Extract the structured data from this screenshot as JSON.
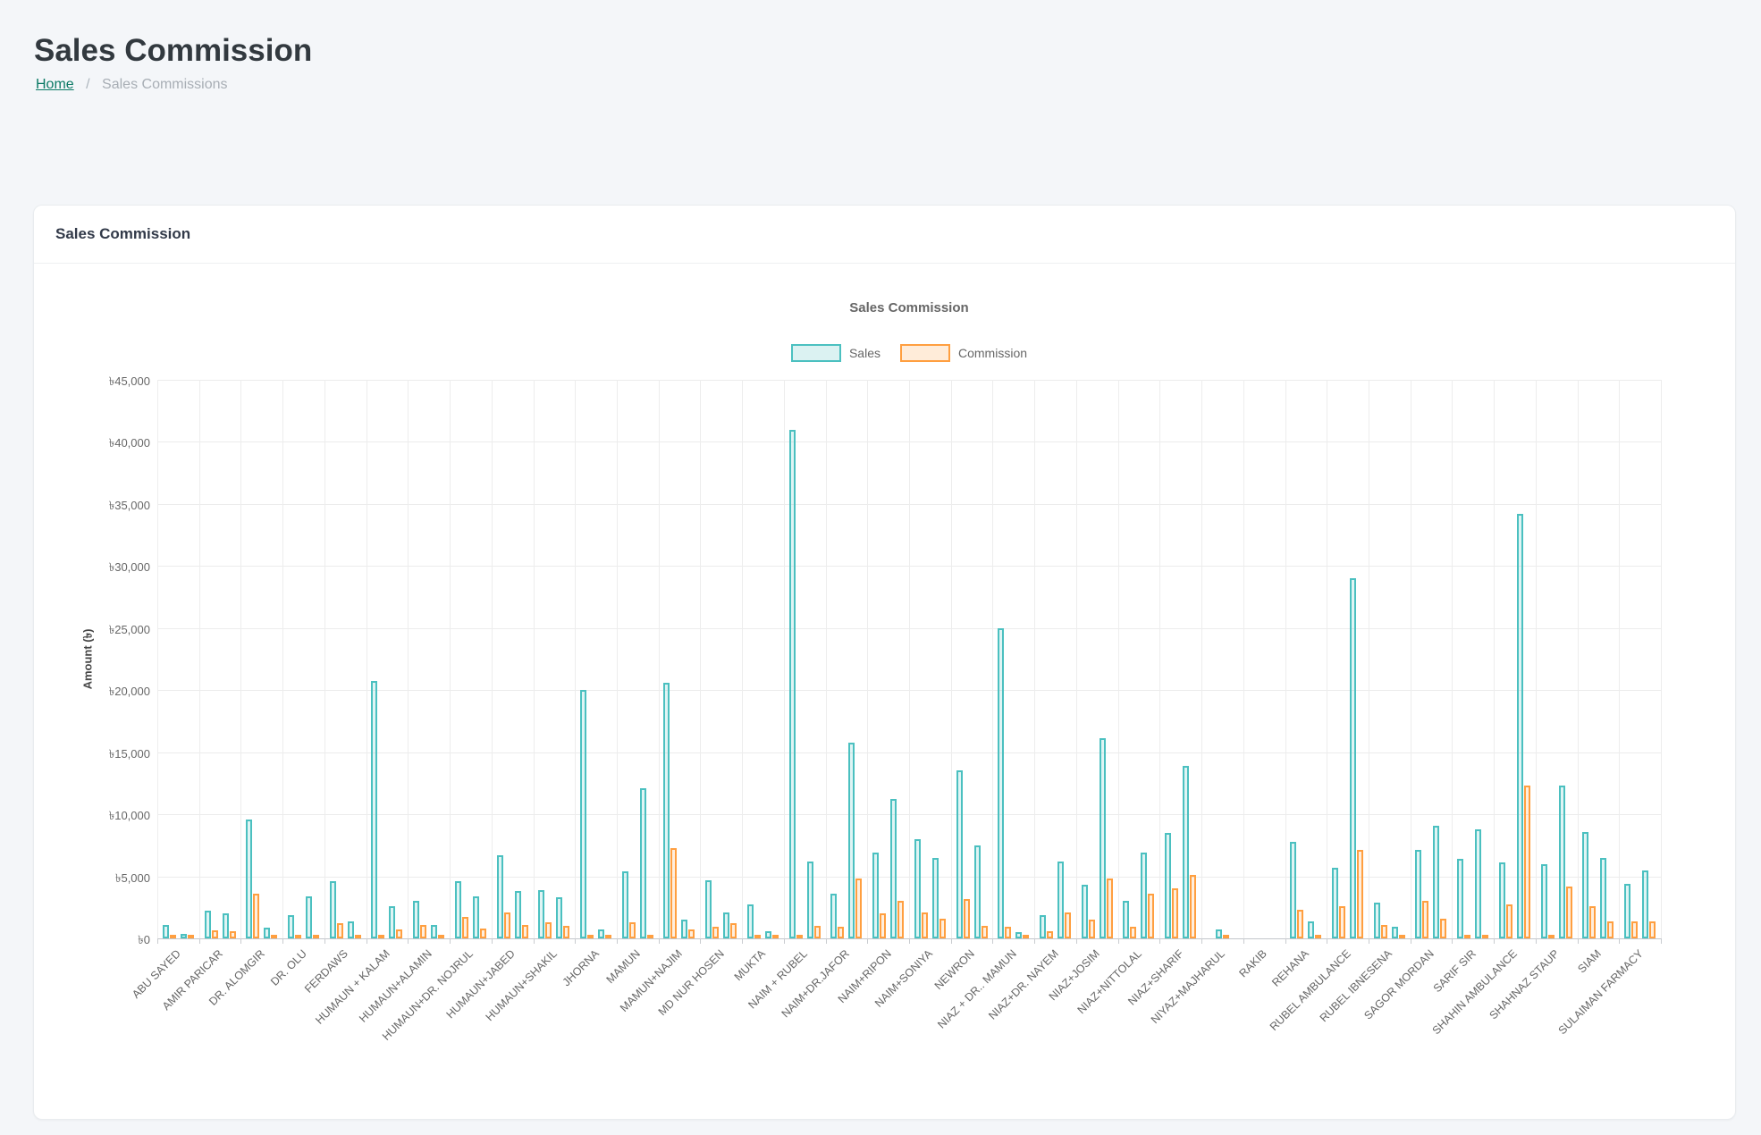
{
  "page": {
    "title": "Sales Commission",
    "breadcrumb": {
      "home": "Home",
      "separator": "/",
      "current": "Sales Commissions"
    }
  },
  "card": {
    "title": "Sales Commission"
  },
  "chart_data": {
    "type": "bar",
    "title": "Sales Commission",
    "ylabel": "Amount (৳)",
    "ylim": [
      0,
      45000
    ],
    "ytick_step": 5000,
    "yticks": [
      "৳0",
      "৳5,000",
      "৳10,000",
      "৳15,000",
      "৳20,000",
      "৳25,000",
      "৳30,000",
      "৳35,000",
      "৳40,000",
      "৳45,000"
    ],
    "legend_position": "top",
    "grid": true,
    "x_label_rotation": -45,
    "pairs_per_category": 2,
    "categories": [
      "ABU SAYED",
      "AMIR PARICAR",
      "DR. ALOMGIR",
      "DR. OLU",
      "FERDAWS",
      "HUMAUN + KALAM",
      "HUMAUN+ALAMIN",
      "HUMAUN+DR. NOJRUL",
      "HUMAUN+JABED",
      "HUMAUN+SHAKIL",
      "JHORNA",
      "MAMUN",
      "MAMUN+NAJIM",
      "MD NUR HOSEN",
      "MUKTA",
      "NAIM + RUBEL",
      "NAIM+DR.JAFOR",
      "NAIM+RIPON",
      "NAIM+SONIYA",
      "NEWRON",
      "NIAZ + DR.. MAMUN",
      "NIAZ+DR. NAYEM",
      "NIAZ+JOSIM",
      "NIAZ+NITTOLAL",
      "NIAZ+SHARIF",
      "NIYAZ+MAJHARUL",
      "RAKIB",
      "REHANA",
      "RUBEL AMBULANCE",
      "RUBEL IBNESENA",
      "SAGOR MORDAN",
      "SARIF SIR",
      "SHAHIN AMBULANCE",
      "SHAHNAZ STAUP",
      "SIAM",
      "SULAIMAN FARMACY"
    ],
    "series": [
      {
        "name": "Sales",
        "color": "#4bc0c0",
        "fill": "rgba(75,192,192,0.2)",
        "values": [
          1100,
          350,
          2250,
          2000,
          9600,
          850,
          1850,
          3350,
          4600,
          1400,
          20700,
          2600,
          3000,
          1100,
          4600,
          3400,
          6700,
          3800,
          3900,
          3300,
          20000,
          700,
          5400,
          12100,
          20600,
          1500,
          4700,
          2100,
          2700,
          600,
          41000,
          6200,
          3600,
          15800,
          6900,
          11200,
          8000,
          6500,
          13500,
          7500,
          25000,
          500,
          1900,
          6200,
          4300,
          16100,
          3000,
          6900,
          8500,
          13900,
          700,
          0,
          0,
          0,
          7800,
          1400,
          5700,
          29000,
          2900,
          950,
          7100,
          9050,
          6400,
          8800,
          6100,
          34200,
          6000,
          12300,
          8600,
          6500,
          4400,
          5500
        ]
      },
      {
        "name": "Commission",
        "color": "#ff9f40",
        "fill": "rgba(255,159,64,0.2)",
        "values": [
          150,
          80,
          650,
          550,
          3600,
          100,
          100,
          100,
          1200,
          100,
          100,
          700,
          1100,
          300,
          1700,
          800,
          2100,
          1100,
          1300,
          1000,
          100,
          100,
          1300,
          100,
          7300,
          700,
          900,
          1200,
          100,
          300,
          100,
          1000,
          900,
          4800,
          2000,
          3000,
          2100,
          1550,
          3200,
          1000,
          900,
          100,
          600,
          2100,
          1500,
          4800,
          900,
          3600,
          4000,
          5100,
          100,
          0,
          0,
          0,
          2300,
          100,
          2600,
          7100,
          1100,
          100,
          3000,
          1550,
          100,
          100,
          2700,
          12300,
          100,
          4200,
          2600,
          1400,
          1400,
          1400
        ]
      }
    ]
  }
}
